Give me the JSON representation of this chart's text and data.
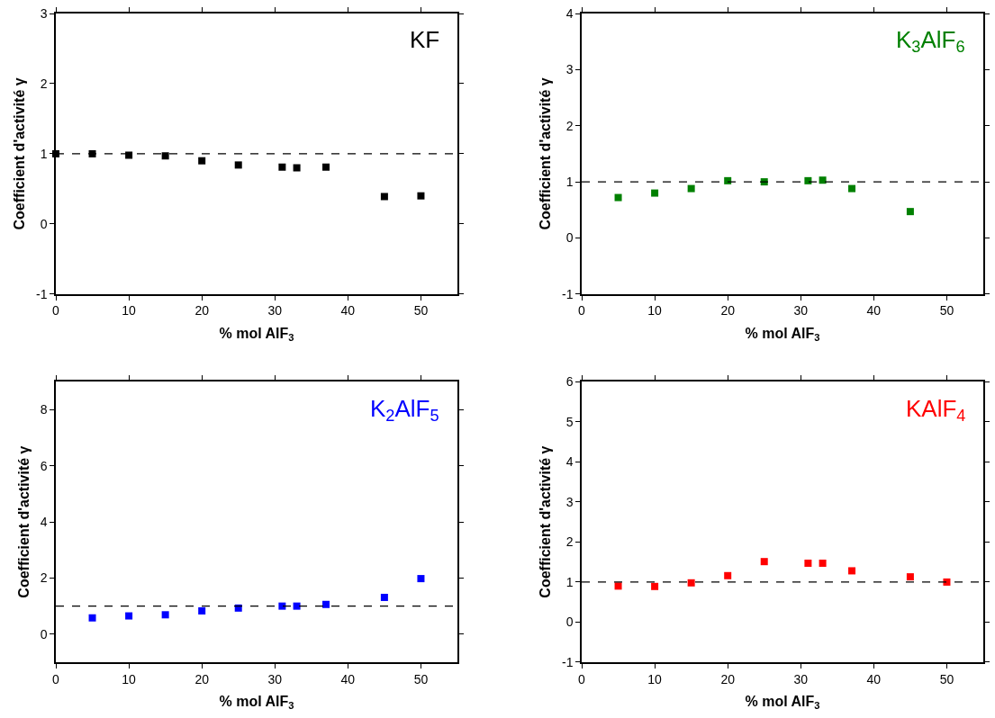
{
  "chart_data": [
    {
      "type": "scatter",
      "xlabel": "% mol AlF$_{3}$",
      "ylabel": "Coefficient d'activité γ",
      "marker": "square",
      "xlim": [
        0,
        55
      ],
      "xticks": [
        0,
        10,
        20,
        30,
        40,
        50
      ],
      "ylim": [
        -1,
        3
      ],
      "yticks": [
        -1,
        0,
        1,
        2,
        3
      ],
      "x": [
        0,
        5,
        10,
        15,
        20,
        25,
        31,
        33,
        37,
        45,
        50
      ],
      "series": [
        {
          "name": "KF",
          "color": "#000000",
          "values": [
            1.0,
            1.0,
            0.98,
            0.97,
            0.9,
            0.84,
            0.81,
            0.8,
            0.81,
            0.39,
            0.4
          ]
        }
      ],
      "ref_lines": [
        {
          "axis": "y",
          "value": 1,
          "color": "#000000",
          "line_style": "dashed"
        }
      ]
    },
    {
      "type": "scatter",
      "xlabel": "% mol AlF$_{3}$",
      "ylabel": "Coefficient d'activité γ",
      "marker": "square",
      "xlim": [
        0,
        55
      ],
      "xticks": [
        0,
        10,
        20,
        30,
        40,
        50
      ],
      "ylim": [
        -1,
        4
      ],
      "yticks": [
        -1,
        0,
        1,
        2,
        3,
        4
      ],
      "x": [
        5,
        10,
        15,
        20,
        25,
        31,
        33,
        37,
        45
      ],
      "series": [
        {
          "name": "K$_{3}$AlF$_{6}$",
          "color": "#008000",
          "values": [
            0.72,
            0.8,
            0.88,
            1.02,
            1.0,
            1.02,
            1.03,
            0.88,
            0.47
          ]
        }
      ],
      "ref_lines": [
        {
          "axis": "y",
          "value": 1,
          "color": "#000000",
          "line_style": "dashed"
        }
      ]
    },
    {
      "type": "scatter",
      "xlabel": "% mol AlF$_{3}$",
      "ylabel": "Coefficient d'activité γ",
      "marker": "square",
      "xlim": [
        0,
        55
      ],
      "xticks": [
        0,
        10,
        20,
        30,
        40,
        50
      ],
      "ylim": [
        -1,
        9
      ],
      "yticks": [
        0,
        2,
        4,
        6,
        8
      ],
      "x": [
        5,
        10,
        15,
        20,
        25,
        31,
        33,
        37,
        45,
        50
      ],
      "series": [
        {
          "name": "K$_{2}$AlF$_{5}$",
          "color": "#0000ff",
          "values": [
            0.58,
            0.65,
            0.69,
            0.83,
            0.93,
            1.0,
            1.0,
            1.06,
            1.31,
            1.98
          ]
        }
      ],
      "ref_lines": [
        {
          "axis": "y",
          "value": 1,
          "color": "#000000",
          "line_style": "dashed"
        }
      ]
    },
    {
      "type": "scatter",
      "xlabel": "% mol AlF$_{3}$",
      "ylabel": "Coefficient d'activité γ",
      "marker": "square",
      "xlim": [
        0,
        55
      ],
      "xticks": [
        0,
        10,
        20,
        30,
        40,
        50
      ],
      "ylim": [
        -1,
        6
      ],
      "yticks": [
        -1,
        0,
        1,
        2,
        3,
        4,
        5,
        6
      ],
      "x": [
        5,
        10,
        15,
        20,
        25,
        31,
        33,
        37,
        45,
        50
      ],
      "series": [
        {
          "name": "KAlF$_{4}$",
          "color": "#ff0000",
          "values": [
            0.9,
            0.89,
            0.98,
            1.16,
            1.51,
            1.47,
            1.47,
            1.28,
            1.13,
            1.0
          ]
        }
      ],
      "ref_lines": [
        {
          "axis": "y",
          "value": 1,
          "color": "#000000",
          "line_style": "dashed"
        }
      ]
    }
  ]
}
